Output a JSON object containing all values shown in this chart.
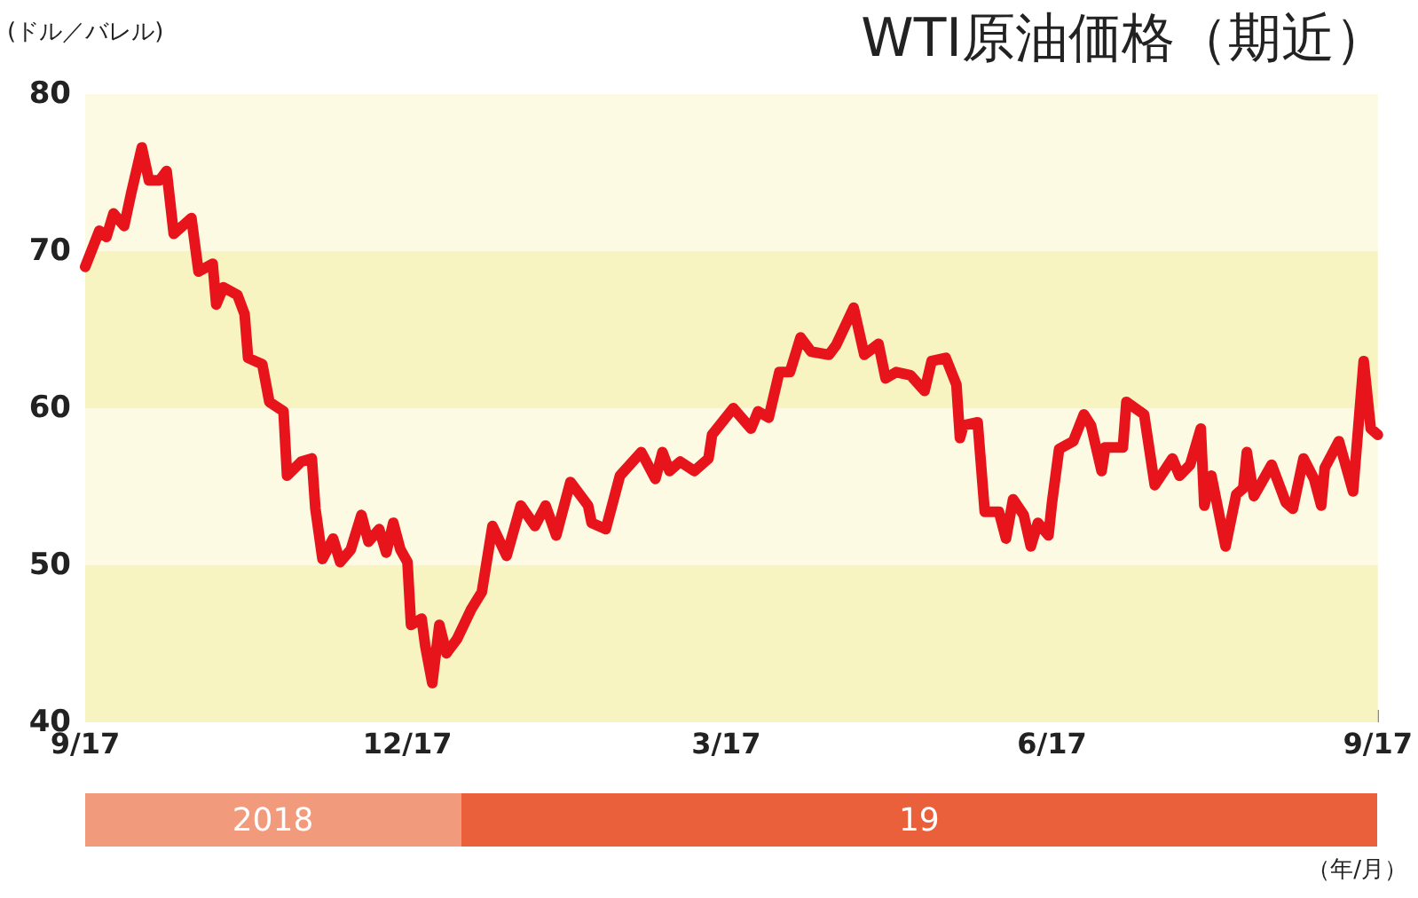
{
  "chart_data": {
    "type": "line",
    "title": "WTI原油価格（期近）",
    "annotations": [
      "(ドル／バレル)",
      "（年/月）",
      "2018",
      "19"
    ],
    "x": [
      "2018-09-17",
      "2018-09-21",
      "2018-09-23",
      "2018-09-25",
      "2018-09-28",
      "2018-09-30",
      "2018-10-03",
      "2018-10-05",
      "2018-10-08",
      "2018-10-10",
      "2018-10-12",
      "2018-10-17",
      "2018-10-19",
      "2018-10-23",
      "2018-10-24",
      "2018-10-26",
      "2018-10-30",
      "2018-11-01",
      "2018-11-02",
      "2018-11-06",
      "2018-11-08",
      "2018-11-12",
      "2018-11-13",
      "2018-11-17",
      "2018-11-20",
      "2018-11-21",
      "2018-11-23",
      "2018-11-26",
      "2018-11-28",
      "2018-12-01",
      "2018-12-04",
      "2018-12-06",
      "2018-12-09",
      "2018-12-11",
      "2018-12-13",
      "2018-12-15",
      "2018-12-17",
      "2018-12-18",
      "2018-12-21",
      "2018-12-22",
      "2018-12-24",
      "2018-12-26",
      "2018-12-28",
      "2018-12-31",
      "2019-01-04",
      "2019-01-07",
      "2019-01-10",
      "2019-01-14",
      "2019-01-18",
      "2019-01-22",
      "2019-01-25",
      "2019-01-28",
      "2019-02-01",
      "2019-02-06",
      "2019-02-07",
      "2019-02-11",
      "2019-02-15",
      "2019-02-21",
      "2019-02-25",
      "2019-02-27",
      "2019-03-01",
      "2019-03-04",
      "2019-03-08",
      "2019-03-12",
      "2019-03-13",
      "2019-03-19",
      "2019-03-24",
      "2019-03-26",
      "2019-03-29",
      "2019-04-01",
      "2019-04-04",
      "2019-04-07",
      "2019-04-10",
      "2019-04-15",
      "2019-04-17",
      "2019-04-22",
      "2019-04-25",
      "2019-04-29",
      "2019-05-01",
      "2019-05-04",
      "2019-05-08",
      "2019-05-12",
      "2019-05-14",
      "2019-05-18",
      "2019-05-21",
      "2019-05-22",
      "2019-05-23",
      "2019-05-27",
      "2019-05-29",
      "2019-06-02",
      "2019-06-04",
      "2019-06-06",
      "2019-06-09",
      "2019-06-11",
      "2019-06-13",
      "2019-06-16",
      "2019-06-17",
      "2019-06-19",
      "2019-06-23",
      "2019-06-26",
      "2019-06-28",
      "2019-07-01",
      "2019-07-02",
      "2019-07-07",
      "2019-07-08",
      "2019-07-13",
      "2019-07-16",
      "2019-07-21",
      "2019-07-23",
      "2019-07-26",
      "2019-07-29",
      "2019-07-30",
      "2019-08-01",
      "2019-08-05",
      "2019-08-08",
      "2019-08-10",
      "2019-08-11",
      "2019-08-13",
      "2019-08-18",
      "2019-08-22",
      "2019-08-24",
      "2019-08-27",
      "2019-08-30",
      "2019-09-01",
      "2019-09-02",
      "2019-09-06",
      "2019-09-10",
      "2019-09-13",
      "2019-09-15",
      "2019-09-17"
    ],
    "series": [
      {
        "color": "#e8141b",
        "values": [
          69.0,
          71.3,
          70.9,
          72.4,
          71.6,
          73.7,
          76.6,
          74.5,
          74.5,
          75.1,
          71.1,
          72.1,
          68.7,
          69.2,
          66.6,
          67.7,
          67.2,
          66.0,
          63.2,
          62.8,
          60.4,
          59.8,
          55.7,
          56.6,
          56.8,
          53.6,
          50.4,
          51.7,
          50.2,
          51.0,
          53.2,
          51.5,
          52.3,
          50.8,
          52.7,
          51.0,
          50.2,
          46.2,
          46.6,
          44.9,
          42.5,
          46.2,
          44.4,
          45.3,
          47.2,
          48.3,
          52.5,
          50.6,
          53.8,
          52.5,
          53.8,
          51.9,
          55.3,
          53.8,
          52.7,
          52.3,
          55.7,
          57.2,
          55.5,
          57.2,
          56.0,
          56.6,
          56.0,
          56.8,
          58.3,
          60.0,
          58.7,
          59.8,
          59.4,
          62.3,
          62.3,
          64.5,
          63.6,
          63.4,
          64.0,
          66.4,
          63.4,
          64.1,
          61.9,
          62.3,
          62.1,
          61.1,
          63.0,
          63.2,
          61.5,
          58.1,
          58.9,
          59.1,
          53.4,
          53.4,
          51.7,
          54.2,
          53.2,
          51.2,
          52.7,
          51.9,
          54.0,
          57.4,
          57.9,
          59.6,
          58.9,
          56.0,
          57.5,
          57.5,
          60.4,
          59.6,
          55.1,
          56.8,
          55.7,
          56.4,
          58.7,
          53.8,
          55.7,
          51.2,
          54.5,
          54.9,
          57.2,
          54.4,
          56.4,
          54.0,
          53.6,
          56.8,
          55.5,
          53.8,
          56.2,
          57.9,
          54.7,
          63.0,
          58.7,
          58.3
        ]
      }
    ],
    "xlim": [
      "2018-09-17",
      "2019-09-17"
    ],
    "xticks": [
      {
        "value": "2018-09-17",
        "label": "9/17"
      },
      {
        "value": "2018-12-17",
        "label": "12/17"
      },
      {
        "value": "2019-03-17",
        "label": "3/17"
      },
      {
        "value": "2019-06-17",
        "label": "6/17"
      },
      {
        "value": "2019-09-17",
        "label": "9/17"
      }
    ],
    "ylim": [
      40,
      80
    ],
    "yticks": [
      40,
      50,
      60,
      70,
      80
    ],
    "bands": [
      {
        "axis": "y",
        "from": 40,
        "to": 50,
        "color": "#f8f4c2"
      },
      {
        "axis": "y",
        "from": 50,
        "to": 60,
        "color": "#fcfae3"
      },
      {
        "axis": "y",
        "from": 60,
        "to": 70,
        "color": "#f8f4c2"
      },
      {
        "axis": "y",
        "from": 70,
        "to": 80,
        "color": "#fcfae3"
      }
    ],
    "grid": false,
    "marker": "none",
    "line_style": "solid"
  }
}
